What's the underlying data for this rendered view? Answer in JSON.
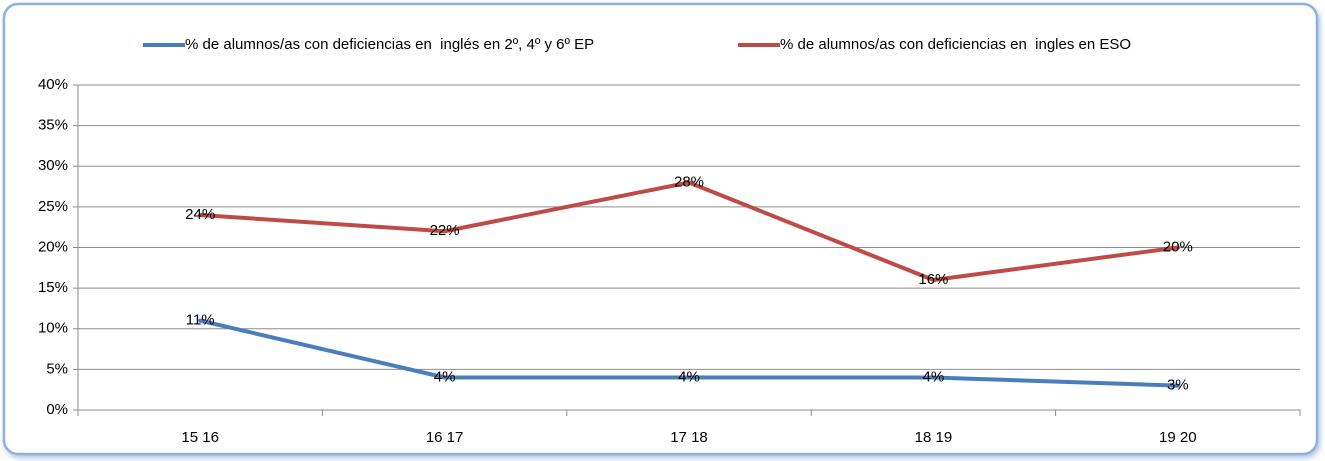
{
  "chart_data": {
    "type": "line",
    "categories": [
      "15 16",
      "16 17",
      "17 18",
      "18 19",
      "19 20"
    ],
    "series": [
      {
        "name": "% de alumnos/as con deficiencias en  inglés en 2º, 4º y 6º EP",
        "color": "#4a7ebb",
        "values": [
          11,
          4,
          4,
          4,
          3
        ],
        "value_labels": [
          "11%",
          "4%",
          "4%",
          "4%",
          "3%"
        ]
      },
      {
        "name": "% de alumnos/as con deficiencias en  ingles en ESO",
        "color": "#be4b48",
        "values": [
          24,
          22,
          28,
          16,
          20
        ],
        "value_labels": [
          "24%",
          "22%",
          "28%",
          "16%",
          "20%"
        ]
      }
    ],
    "ylim": [
      0,
      40
    ],
    "yticks": [
      {
        "value": 0,
        "label": "0%"
      },
      {
        "value": 5,
        "label": "5%"
      },
      {
        "value": 10,
        "label": "10%"
      },
      {
        "value": 15,
        "label": "15%"
      },
      {
        "value": 20,
        "label": "20%"
      },
      {
        "value": 25,
        "label": "25%"
      },
      {
        "value": 30,
        "label": "30%"
      },
      {
        "value": 35,
        "label": "35%"
      },
      {
        "value": 40,
        "label": "40%"
      }
    ],
    "grid": true,
    "legend": "top"
  }
}
